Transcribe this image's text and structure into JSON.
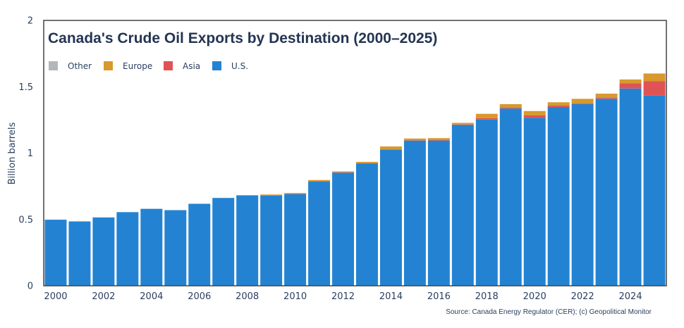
{
  "chart_data": {
    "type": "bar",
    "stacked": true,
    "title": "Canada's Crude Oil Exports by Destination (2000–2025)",
    "ylabel": "Billion barrels",
    "xlabel": "",
    "ylim": [
      0,
      2
    ],
    "yticks": [
      0,
      0.5,
      1,
      1.5,
      2
    ],
    "ytick_labels": [
      "0",
      "0.5",
      "1",
      "1.5",
      "2"
    ],
    "xticks": [
      2000,
      2002,
      2004,
      2006,
      2008,
      2010,
      2012,
      2014,
      2016,
      2018,
      2020,
      2022,
      2024
    ],
    "xtick_labels": [
      "2000",
      "2002",
      "2004",
      "2006",
      "2008",
      "2010",
      "2012",
      "2014",
      "2016",
      "2018",
      "2020",
      "2022",
      "2024"
    ],
    "categories": [
      2000,
      2001,
      2002,
      2003,
      2004,
      2005,
      2006,
      2007,
      2008,
      2009,
      2010,
      2011,
      2012,
      2013,
      2014,
      2015,
      2016,
      2017,
      2018,
      2019,
      2020,
      2021,
      2022,
      2023,
      2024,
      2025
    ],
    "legend_position": "top-left",
    "grid": false,
    "source": "Source: Canada Energy Regulator (CER); (c) Geopolitical Monitor",
    "series": [
      {
        "name": "U.S.",
        "color": "#2383d2",
        "values": [
          0.498,
          0.485,
          0.515,
          0.555,
          0.58,
          0.57,
          0.618,
          0.662,
          0.682,
          0.68,
          0.692,
          0.785,
          0.853,
          0.922,
          1.025,
          1.095,
          1.095,
          1.213,
          1.253,
          1.336,
          1.266,
          1.348,
          1.37,
          1.41,
          1.487,
          1.433
        ]
      },
      {
        "name": "Asia",
        "color": "#e05355",
        "values": [
          0,
          0,
          0,
          0,
          0,
          0,
          0,
          0,
          0,
          0.003,
          0.002,
          0.004,
          0.003,
          0.002,
          0.002,
          0.002,
          0.003,
          0.003,
          0.01,
          0.006,
          0.018,
          0.01,
          0.004,
          0.006,
          0.038,
          0.11
        ]
      },
      {
        "name": "Europe",
        "color": "#d8992d",
        "values": [
          0,
          0,
          0,
          0,
          0,
          0,
          0,
          0,
          0,
          0.005,
          0.005,
          0.008,
          0.006,
          0.01,
          0.023,
          0.013,
          0.015,
          0.012,
          0.033,
          0.027,
          0.033,
          0.025,
          0.035,
          0.032,
          0.03,
          0.057
        ]
      },
      {
        "name": "Other",
        "color": "#b3b6ba",
        "values": [
          0,
          0,
          0,
          0,
          0,
          0,
          0,
          0,
          0,
          0,
          0,
          0,
          0,
          0,
          0,
          0,
          0,
          0,
          0,
          0,
          0,
          0,
          0,
          0,
          0,
          0
        ]
      }
    ],
    "legend_order": [
      "Other",
      "Europe",
      "Asia",
      "U.S."
    ]
  }
}
